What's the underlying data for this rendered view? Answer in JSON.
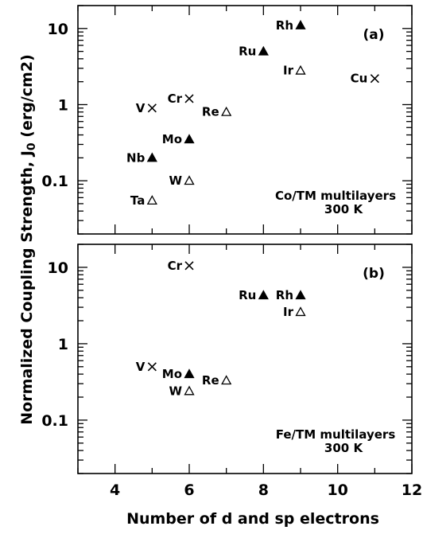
{
  "chart_data": [
    {
      "type": "scatter",
      "panel_label": "(a)",
      "annotation": [
        "Co/TM multilayers",
        "300 K"
      ],
      "y_scale": "log",
      "xlim": [
        3,
        12
      ],
      "ylim": [
        0.02,
        20
      ],
      "points": [
        {
          "label": "Rh",
          "x": 9,
          "y": 11,
          "marker": "filled-triangle"
        },
        {
          "label": "Ru",
          "x": 8,
          "y": 5,
          "marker": "filled-triangle"
        },
        {
          "label": "Ir",
          "x": 9,
          "y": 2.8,
          "marker": "open-triangle"
        },
        {
          "label": "Cu",
          "x": 11,
          "y": 2.2,
          "marker": "cross"
        },
        {
          "label": "Cr",
          "x": 6,
          "y": 1.2,
          "marker": "cross"
        },
        {
          "label": "V",
          "x": 5,
          "y": 0.9,
          "marker": "cross"
        },
        {
          "label": "Re",
          "x": 7,
          "y": 0.8,
          "marker": "open-triangle"
        },
        {
          "label": "Mo",
          "x": 6,
          "y": 0.35,
          "marker": "filled-triangle"
        },
        {
          "label": "Nb",
          "x": 5,
          "y": 0.2,
          "marker": "filled-triangle"
        },
        {
          "label": "W",
          "x": 6,
          "y": 0.1,
          "marker": "open-triangle"
        },
        {
          "label": "Ta",
          "x": 5,
          "y": 0.055,
          "marker": "open-triangle"
        }
      ]
    },
    {
      "type": "scatter",
      "panel_label": "(b)",
      "annotation": [
        "Fe/TM multilayers",
        "300 K"
      ],
      "y_scale": "log",
      "xlim": [
        3,
        12
      ],
      "ylim": [
        0.02,
        20
      ],
      "points": [
        {
          "label": "Cr",
          "x": 6,
          "y": 10.5,
          "marker": "cross"
        },
        {
          "label": "Ru",
          "x": 8,
          "y": 4.3,
          "marker": "filled-triangle"
        },
        {
          "label": "Rh",
          "x": 9,
          "y": 4.3,
          "marker": "filled-triangle"
        },
        {
          "label": "Ir",
          "x": 9,
          "y": 2.6,
          "marker": "open-triangle"
        },
        {
          "label": "V",
          "x": 5,
          "y": 0.5,
          "marker": "cross"
        },
        {
          "label": "Mo",
          "x": 6,
          "y": 0.4,
          "marker": "filled-triangle"
        },
        {
          "label": "Re",
          "x": 7,
          "y": 0.33,
          "marker": "open-triangle"
        },
        {
          "label": "W",
          "x": 6,
          "y": 0.24,
          "marker": "open-triangle"
        }
      ]
    }
  ],
  "axes": {
    "xlabel": "Number of d and sp electrons",
    "ylabel": "Normalized Coupling Strength, J",
    "ylabel_sub": "0",
    "ylabel_units": " (erg/cm2)",
    "xticks": [
      "4",
      "6",
      "8",
      "10",
      "12"
    ],
    "yticks": [
      "0.1",
      "1",
      "10"
    ]
  }
}
